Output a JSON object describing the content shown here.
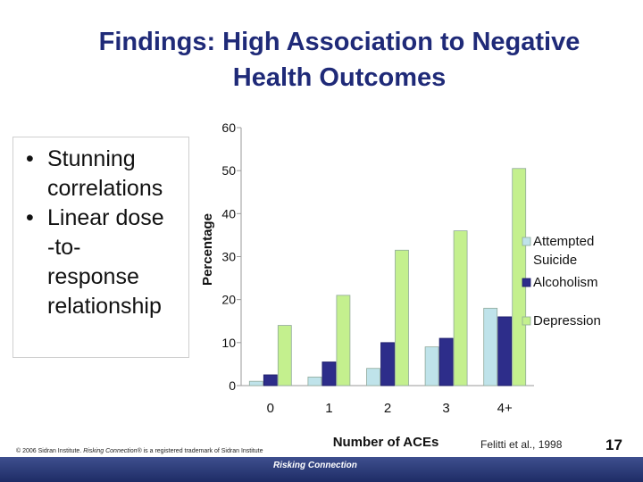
{
  "slide": {
    "title_line1": "Findings: High Association to Negative",
    "title_line2": "Health Outcomes",
    "bullets": [
      {
        "lines": [
          "Stunning",
          "correlations"
        ]
      },
      {
        "lines": [
          "Linear dose",
          "-to-",
          "response",
          "relationship"
        ]
      }
    ],
    "bullet_glyph": "•",
    "footer_copyright_prefix": "© 2006 Sidran Institute. ",
    "footer_copyright_italic": "Risking Connection®",
    "footer_copyright_suffix": " is a registered trademark of Sidran Institute",
    "citation": "Felitti et al., 1998",
    "page_number": "17",
    "logo_text": "Risking Connection"
  },
  "chart_data": {
    "type": "bar",
    "title": "",
    "xlabel": "Number of ACEs",
    "ylabel": "Percentage",
    "categories": [
      "0",
      "1",
      "2",
      "3",
      "4+"
    ],
    "ylim": [
      0,
      60
    ],
    "yticks": [
      "0",
      "10",
      "20",
      "30",
      "40",
      "50",
      "60"
    ],
    "grid": false,
    "legend_position": "right",
    "series": [
      {
        "name": "Attempted Suicide",
        "color": "#bfe3ea",
        "values": [
          1,
          2,
          4,
          9,
          18
        ]
      },
      {
        "name": "Alcoholism",
        "color": "#2d2d8a",
        "values": [
          2.5,
          5.5,
          10,
          11,
          16
        ]
      },
      {
        "name": "Depression",
        "color": "#c4f08e",
        "values": [
          14,
          21,
          31.5,
          36,
          50.5
        ]
      }
    ]
  }
}
